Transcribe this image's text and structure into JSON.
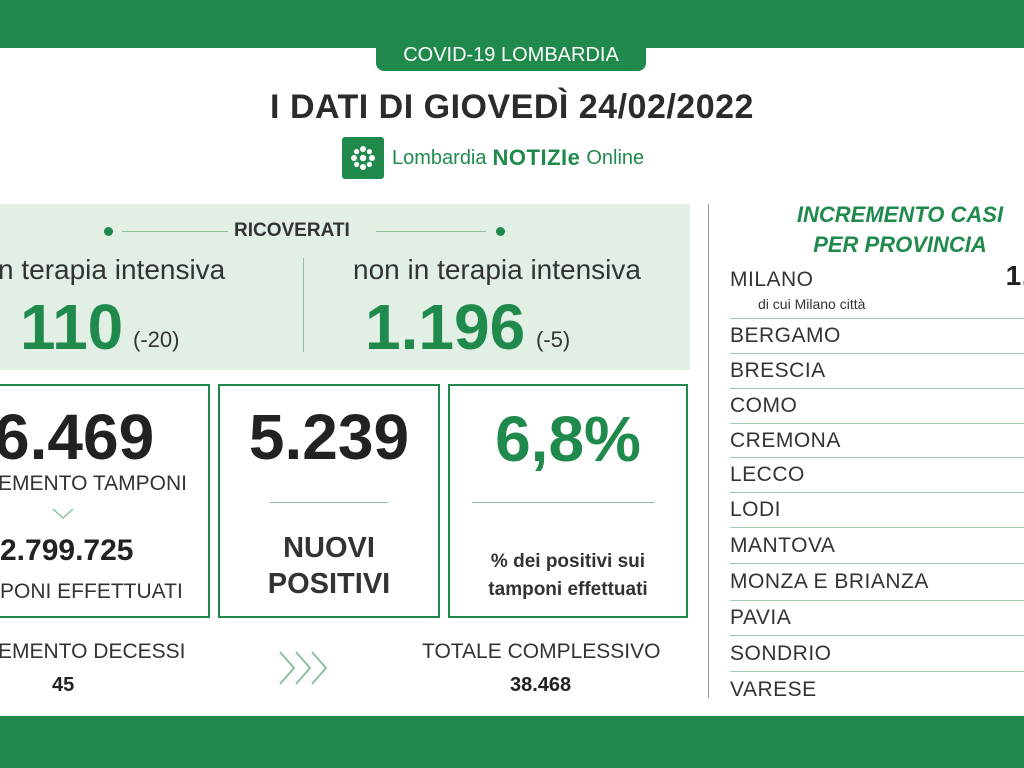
{
  "header": {
    "tab": "COVID-19 LOMBARDIA",
    "title": "I DATI DI GIOVEDÌ 24/02/2022",
    "brand": {
      "name": "Lombardia",
      "bold": "NOTIZIe",
      "online": "Online"
    },
    "brand_logo_icon": "lombardy-rose-icon"
  },
  "colors": {
    "brand_green": "#1f8a4c",
    "panel_green": "#e2efe4"
  },
  "hospitalized": {
    "header": "RICOVERATI",
    "intensive": {
      "label": "n terapia intensiva",
      "value": "110",
      "delta": "(-20)"
    },
    "non_intensive": {
      "label": "non in terapia intensiva",
      "value": "1.196",
      "delta": "(-5)"
    }
  },
  "tests": {
    "increment_value": "6.469",
    "increment_label": "EMENTO TAMPONI",
    "total_value": "2.799.725",
    "total_label": "PONI EFFETTUATI"
  },
  "new_positives": {
    "value": "5.239",
    "label_line1": "NUOVI",
    "label_line2": "POSITIVI"
  },
  "positivity": {
    "value": "6,8%",
    "label_line1": "% dei positivi sui",
    "label_line2": "tamponi effettuati"
  },
  "deaths": {
    "increment_label": "EMENTO DECESSI",
    "increment_value": "45",
    "chevrons_icon": "triple-chevron-right-icon",
    "total_label": "TOTALE COMPLESSIVO",
    "total_value": "38.468"
  },
  "provinces": {
    "title_line1": "INCREMENTO CASI",
    "title_line2": "PER PROVINCIA",
    "milano": {
      "name": "MILANO",
      "value": "1.",
      "sub": "di cui Milano città"
    },
    "items": [
      "BERGAMO",
      "BRESCIA",
      "COMO",
      "CREMONA",
      "LECCO",
      "LODI",
      "MANTOVA",
      "MONZA E BRIANZA",
      "PAVIA",
      "SONDRIO",
      "VARESE"
    ]
  }
}
